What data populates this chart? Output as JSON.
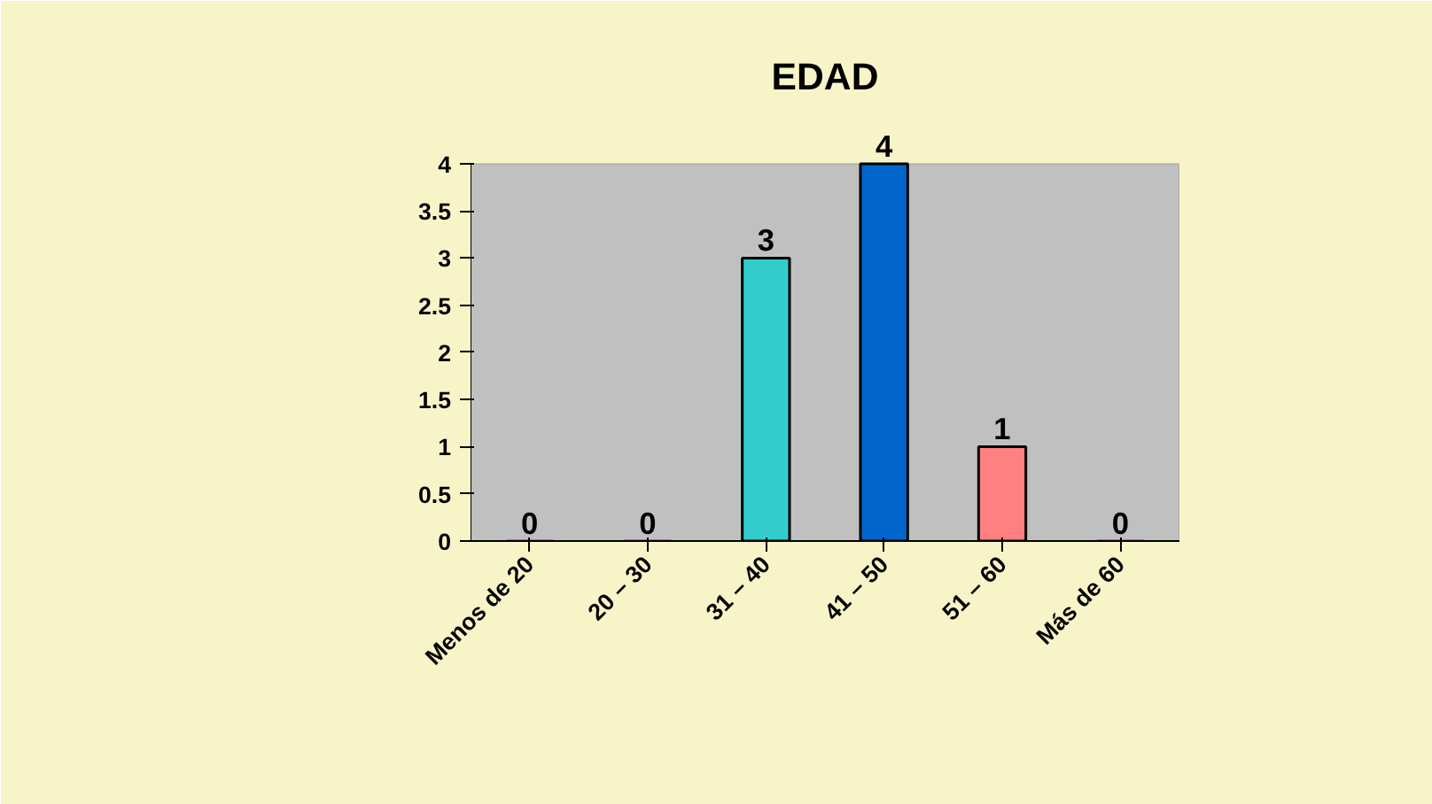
{
  "chart_data": {
    "type": "bar",
    "title": "EDAD",
    "categories": [
      "Menos de 20",
      "20 – 30",
      "31 – 40",
      "41 – 50",
      "51 – 60",
      "Más de 60"
    ],
    "values": [
      0,
      0,
      3,
      4,
      1,
      0
    ],
    "colors": [
      "#cc00cc",
      "#cc00cc",
      "#33cccc",
      "#0066cc",
      "#ff8080",
      "#cc00cc"
    ],
    "ylim": [
      0,
      4
    ],
    "yticks": [
      0,
      0.5,
      1,
      1.5,
      2,
      2.5,
      3,
      3.5,
      4
    ],
    "data_labels": true
  }
}
